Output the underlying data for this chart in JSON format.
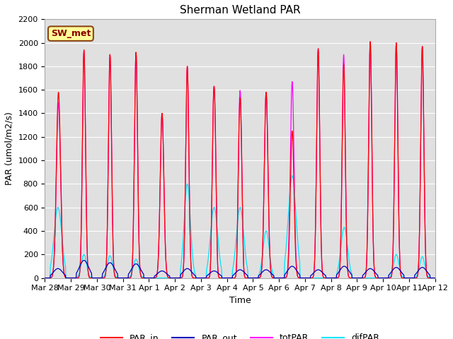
{
  "title": "Sherman Wetland PAR",
  "ylabel": "PAR (umol/m2/s)",
  "xlabel": "Time",
  "annotation": "SW_met",
  "ylim": [
    0,
    2200
  ],
  "yticks": [
    0,
    200,
    400,
    600,
    800,
    1000,
    1200,
    1400,
    1600,
    1800,
    2000,
    2200
  ],
  "background_color": "#d8d8d8",
  "plot_bg_color": "#e0e0e0",
  "line_colors": {
    "PAR_in": "#ff0000",
    "PAR_out": "#0000bb",
    "totPAR": "#ff00ff",
    "difPAR": "#00e5ff"
  },
  "legend_labels": [
    "PAR_in",
    "PAR_out",
    "totPAR",
    "difPAR"
  ],
  "x_tick_labels": [
    "Mar 28",
    "Mar 29",
    "Mar 30",
    "Mar 31",
    "Apr 1",
    "Apr 2",
    "Apr 3",
    "Apr 4",
    "Apr 5",
    "Apr 6",
    "Apr 7",
    "Apr 8",
    "Apr 9",
    "Apr 10",
    "Apr 11",
    "Apr 12"
  ]
}
